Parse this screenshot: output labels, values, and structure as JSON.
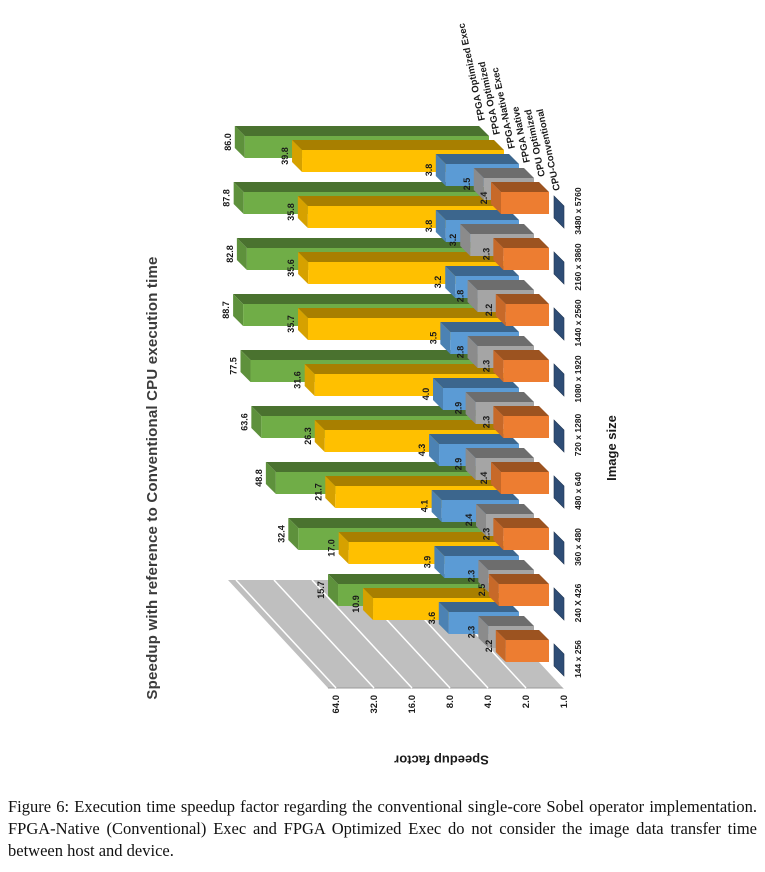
{
  "figure": {
    "caption_label": "Figure 6:",
    "caption_text": "Execution time speedup factor regarding the conventional single-core Sobel operator implementation. FPGA-Native (Conventional) Exec and FPGA Optimized Exec do not consider the image data transfer time between host and device."
  },
  "chart_data": {
    "type": "bar",
    "projection": "3d-column",
    "title": "Speedup with reference to Conventional CPU execution time",
    "value_axis_label": "Speedup factor",
    "category_axis_label": "Image size",
    "value_scale": "log2",
    "value_ticks": [
      1.0,
      2.0,
      4.0,
      8.0,
      16.0,
      32.0,
      64.0
    ],
    "value_axis_range": [
      1.0,
      64.0
    ],
    "grid": true,
    "legend_position": "series-row-ends",
    "categories": [
      "144 x 256",
      "240 X 426",
      "360 x 480",
      "480 x 640",
      "720 x 1280",
      "1080 x 1920",
      "1440 x 2560",
      "2160 x 3860",
      "3480 x 5760"
    ],
    "series": [
      {
        "name": "FPGA Optimized Exec",
        "color": "#70AD47",
        "values": [
          15.7,
          32.4,
          48.8,
          63.6,
          77.5,
          88.7,
          82.8,
          87.8,
          86.0
        ],
        "labels_shown": true
      },
      {
        "name": "FPGA Optimized",
        "color": "#FFC000",
        "values": [
          10.9,
          17.0,
          21.7,
          26.3,
          31.6,
          35.7,
          35.6,
          35.8,
          39.8
        ],
        "labels_shown": true
      },
      {
        "name": "FPGA-Native Exec",
        "color": "#5B9BD5",
        "values": [
          3.6,
          3.9,
          4.1,
          4.3,
          4.0,
          3.5,
          3.2,
          3.8,
          3.8
        ],
        "labels_shown": true
      },
      {
        "name": "FPGA Native",
        "color": "#A5A5A5",
        "values": [
          2.3,
          2.3,
          2.4,
          2.9,
          2.9,
          2.8,
          2.8,
          3.2,
          2.5
        ],
        "labels_shown": true
      },
      {
        "name": "CPU Optimized",
        "color": "#ED7D31",
        "values": [
          2.2,
          2.5,
          2.3,
          2.4,
          2.3,
          2.3,
          2.2,
          2.3,
          2.4
        ],
        "labels_shown": true
      },
      {
        "name": "CPU-Conventional",
        "color": "#2E4D76",
        "values": [
          1.0,
          1.0,
          1.0,
          1.0,
          1.0,
          1.0,
          1.0,
          1.0,
          1.0
        ],
        "labels_shown": false
      }
    ],
    "wall_color": "#BFBFBF",
    "gridline_color": "#FFFFFF"
  }
}
